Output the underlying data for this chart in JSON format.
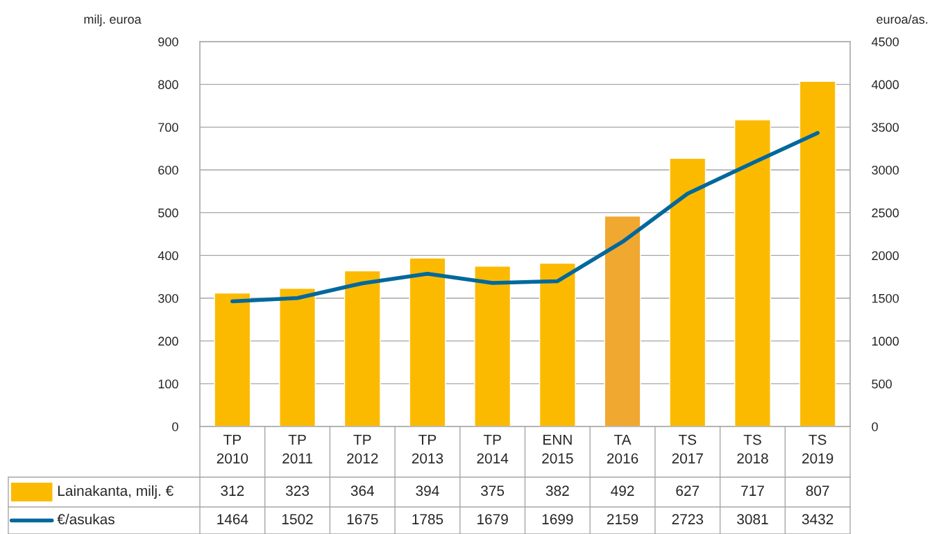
{
  "chart_data": {
    "type": "bar",
    "categories": [
      "TP\n2010",
      "TP\n2011",
      "TP\n2012",
      "TP\n2013",
      "TP\n2014",
      "ENN\n2015",
      "TA\n2016",
      "TS\n2017",
      "TS\n2018",
      "TS\n2019"
    ],
    "series": [
      {
        "name": "Lainakanta, milj. €",
        "color": "#fbba00",
        "colors": [
          "#fbba00",
          "#fbba00",
          "#fbba00",
          "#fbba00",
          "#fbba00",
          "#fbba00",
          "#f0a830",
          "#fbba00",
          "#fbba00",
          "#fbba00"
        ],
        "values": [
          312,
          323,
          364,
          394,
          375,
          382,
          492,
          627,
          717,
          807
        ]
      },
      {
        "name": "€/asukas",
        "type": "line",
        "axis": "y2",
        "color": "#00689d",
        "values": [
          1464,
          1502,
          1675,
          1785,
          1679,
          1699,
          2159,
          2723,
          3081,
          3432
        ]
      }
    ],
    "ylabel": "milj. euroa",
    "y2label": "euroa/as.",
    "ylim": [
      0,
      900
    ],
    "yticks": [
      0,
      100,
      200,
      300,
      400,
      500,
      600,
      700,
      800,
      900
    ],
    "y2lim": [
      0,
      4500
    ],
    "y2ticks": [
      0,
      500,
      1000,
      1500,
      2000,
      2500,
      3000,
      3500,
      4000,
      4500
    ],
    "grid": "y",
    "data_labels": true,
    "legend": "bottom",
    "line_style": "solid"
  }
}
